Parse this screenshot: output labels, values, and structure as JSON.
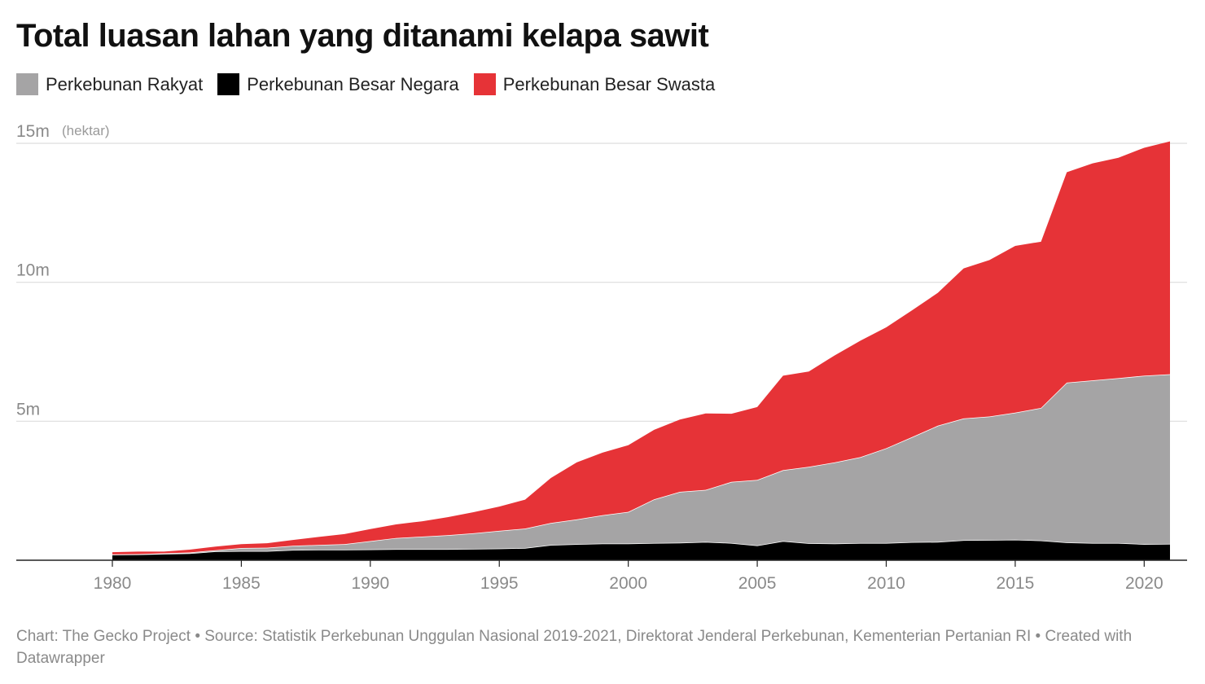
{
  "title": "Total luasan lahan yang ditanami kelapa sawit",
  "footer": {
    "chart_credit": "Chart: The Gecko Project",
    "source": "Source: Statistik Perkebunan Unggulan Nasional 2019-2021, Direktorat Jenderal Perkebunan, Kementerian Pertanian RI",
    "created_with": "Created with Datawrapper"
  },
  "colors": {
    "rakyat": "#a5a4a5",
    "negara": "#000000",
    "swasta": "#e63337",
    "grid": "#dddddd",
    "axis": "#222222"
  },
  "chart_data": {
    "type": "area",
    "stacked": true,
    "title": "Total luasan lahan yang ditanami kelapa sawit",
    "y_unit_label": "(hektar)",
    "xlim": [
      1980,
      2021
    ],
    "ylim": [
      0,
      15000000
    ],
    "x_ticks": [
      1980,
      1985,
      1990,
      1995,
      2000,
      2005,
      2010,
      2015,
      2020
    ],
    "y_ticks": [
      {
        "value": 5000000,
        "label": "5m"
      },
      {
        "value": 10000000,
        "label": "10m"
      },
      {
        "value": 15000000,
        "label": "15m"
      }
    ],
    "grid": true,
    "legend_position": "top-left",
    "x": [
      1980,
      1981,
      1982,
      1983,
      1984,
      1985,
      1986,
      1987,
      1988,
      1989,
      1990,
      1991,
      1992,
      1993,
      1994,
      1995,
      1996,
      1997,
      1998,
      1999,
      2000,
      2001,
      2002,
      2003,
      2004,
      2005,
      2006,
      2007,
      2008,
      2009,
      2010,
      2011,
      2012,
      2013,
      2014,
      2015,
      2016,
      2017,
      2018,
      2019,
      2020,
      2021
    ],
    "series": [
      {
        "name": "Perkebunan Besar Negara",
        "color_key": "negara",
        "values": [
          200000,
          210000,
          230000,
          250000,
          320000,
          330000,
          330000,
          370000,
          380000,
          380000,
          390000,
          400000,
          400000,
          400000,
          410000,
          420000,
          440000,
          550000,
          580000,
          600000,
          600000,
          620000,
          630000,
          660000,
          620000,
          530000,
          690000,
          610000,
          600000,
          620000,
          620000,
          650000,
          660000,
          720000,
          730000,
          740000,
          710000,
          640000,
          620000,
          620000,
          580000,
          590000
        ]
      },
      {
        "name": "Perkebunan Rakyat",
        "color_key": "rakyat",
        "values": [
          10000,
          10000,
          20000,
          30000,
          40000,
          110000,
          120000,
          150000,
          170000,
          200000,
          300000,
          400000,
          450000,
          500000,
          560000,
          640000,
          700000,
          790000,
          890000,
          1020000,
          1140000,
          1570000,
          1830000,
          1870000,
          2200000,
          2360000,
          2550000,
          2750000,
          2920000,
          3090000,
          3410000,
          3780000,
          4180000,
          4380000,
          4440000,
          4570000,
          4770000,
          5750000,
          5850000,
          5930000,
          6060000,
          6100000
        ]
      },
      {
        "name": "Perkebunan Besar Swasta",
        "color_key": "swasta",
        "values": [
          80000,
          90000,
          60000,
          100000,
          130000,
          140000,
          160000,
          210000,
          290000,
          360000,
          430000,
          490000,
          550000,
          650000,
          760000,
          870000,
          1040000,
          1620000,
          2050000,
          2250000,
          2400000,
          2500000,
          2600000,
          2750000,
          2450000,
          2620000,
          3400000,
          3430000,
          3850000,
          4190000,
          4350000,
          4560000,
          4780000,
          5400000,
          5630000,
          6000000,
          5980000,
          7570000,
          7810000,
          7930000,
          8200000,
          8380000
        ]
      }
    ]
  }
}
